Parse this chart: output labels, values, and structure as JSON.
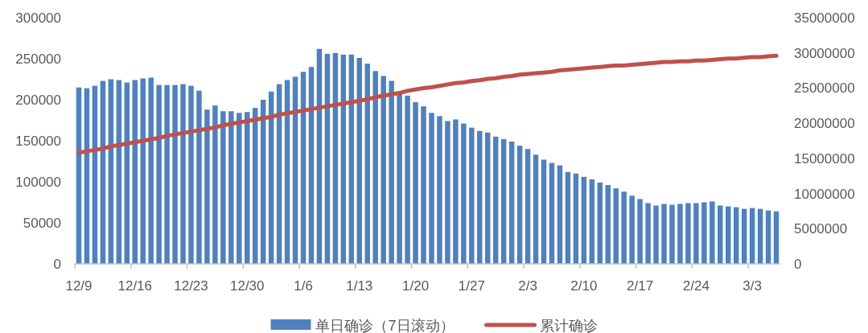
{
  "chart_data": {
    "type": "bar",
    "categories": [
      "12/9",
      null,
      null,
      null,
      null,
      null,
      null,
      "12/16",
      null,
      null,
      null,
      null,
      null,
      null,
      "12/23",
      null,
      null,
      null,
      null,
      null,
      null,
      "12/30",
      null,
      null,
      null,
      null,
      null,
      null,
      "1/6",
      null,
      null,
      null,
      null,
      null,
      null,
      "1/13",
      null,
      null,
      null,
      null,
      null,
      null,
      "1/20",
      null,
      null,
      null,
      null,
      null,
      null,
      "1/27",
      null,
      null,
      null,
      null,
      null,
      null,
      "2/3",
      null,
      null,
      null,
      null,
      null,
      null,
      "2/10",
      null,
      null,
      null,
      null,
      null,
      null,
      "2/17",
      null,
      null,
      null,
      null,
      null,
      null,
      "2/24",
      null,
      null,
      null,
      null,
      null,
      null,
      "3/3",
      null,
      null,
      null
    ],
    "series": [
      {
        "name": "单日确诊（7日滚动）",
        "color": "#4f81bd",
        "values": [
          215000,
          214000,
          217000,
          223000,
          225000,
          224000,
          221000,
          224000,
          226000,
          227000,
          218000,
          218000,
          218000,
          219000,
          217000,
          211000,
          188000,
          193000,
          186000,
          186000,
          184000,
          185000,
          190000,
          200000,
          210000,
          219000,
          224000,
          228000,
          234000,
          240000,
          262000,
          256000,
          257000,
          255000,
          255000,
          251000,
          244000,
          235000,
          229000,
          223000,
          210000,
          205000,
          197000,
          192000,
          184000,
          180000,
          174000,
          176000,
          171000,
          166000,
          162000,
          160000,
          155000,
          152000,
          149000,
          144000,
          140000,
          133000,
          127000,
          123000,
          120000,
          112000,
          110000,
          106000,
          103000,
          99000,
          96000,
          92000,
          88000,
          83000,
          79000,
          74000,
          71000,
          73000,
          72000,
          73000,
          74000,
          74000,
          75000,
          76000,
          71000,
          70000,
          69000,
          67000,
          68000,
          67000,
          65000,
          64000
        ]
      },
      {
        "name": "累计确诊",
        "type": "line",
        "axis": "y2",
        "color": "#c0504d",
        "values": [
          15800000,
          16000000,
          16200000,
          16400000,
          16700000,
          16900000,
          17100000,
          17300000,
          17500000,
          17700000,
          17900000,
          18200000,
          18400000,
          18600000,
          18800000,
          19000000,
          19200000,
          19400000,
          19700000,
          19900000,
          20100000,
          20300000,
          20500000,
          20700000,
          20900000,
          21200000,
          21400000,
          21600000,
          21800000,
          22000000,
          22200000,
          22400000,
          22600000,
          22800000,
          23000000,
          23200000,
          23400000,
          23700000,
          23900000,
          24100000,
          24300000,
          24600000,
          24800000,
          25000000,
          25100000,
          25300000,
          25500000,
          25700000,
          25800000,
          26000000,
          26100000,
          26300000,
          26400000,
          26600000,
          26700000,
          26900000,
          27000000,
          27100000,
          27200000,
          27300000,
          27500000,
          27600000,
          27700000,
          27800000,
          27900000,
          28000000,
          28100000,
          28200000,
          28200000,
          28300000,
          28400000,
          28500000,
          28600000,
          28700000,
          28700000,
          28800000,
          28800000,
          28900000,
          28900000,
          29000000,
          29100000,
          29200000,
          29200000,
          29300000,
          29400000,
          29400000,
          29500000,
          29600000
        ]
      }
    ],
    "ylim": [
      0,
      300000
    ],
    "yticks": [
      0,
      50000,
      100000,
      150000,
      200000,
      250000,
      300000
    ],
    "y2lim": [
      0,
      35000000
    ],
    "y2ticks": [
      0,
      5000000,
      10000000,
      15000000,
      20000000,
      25000000,
      30000000,
      35000000
    ],
    "grid": false,
    "legend": "bottom"
  }
}
